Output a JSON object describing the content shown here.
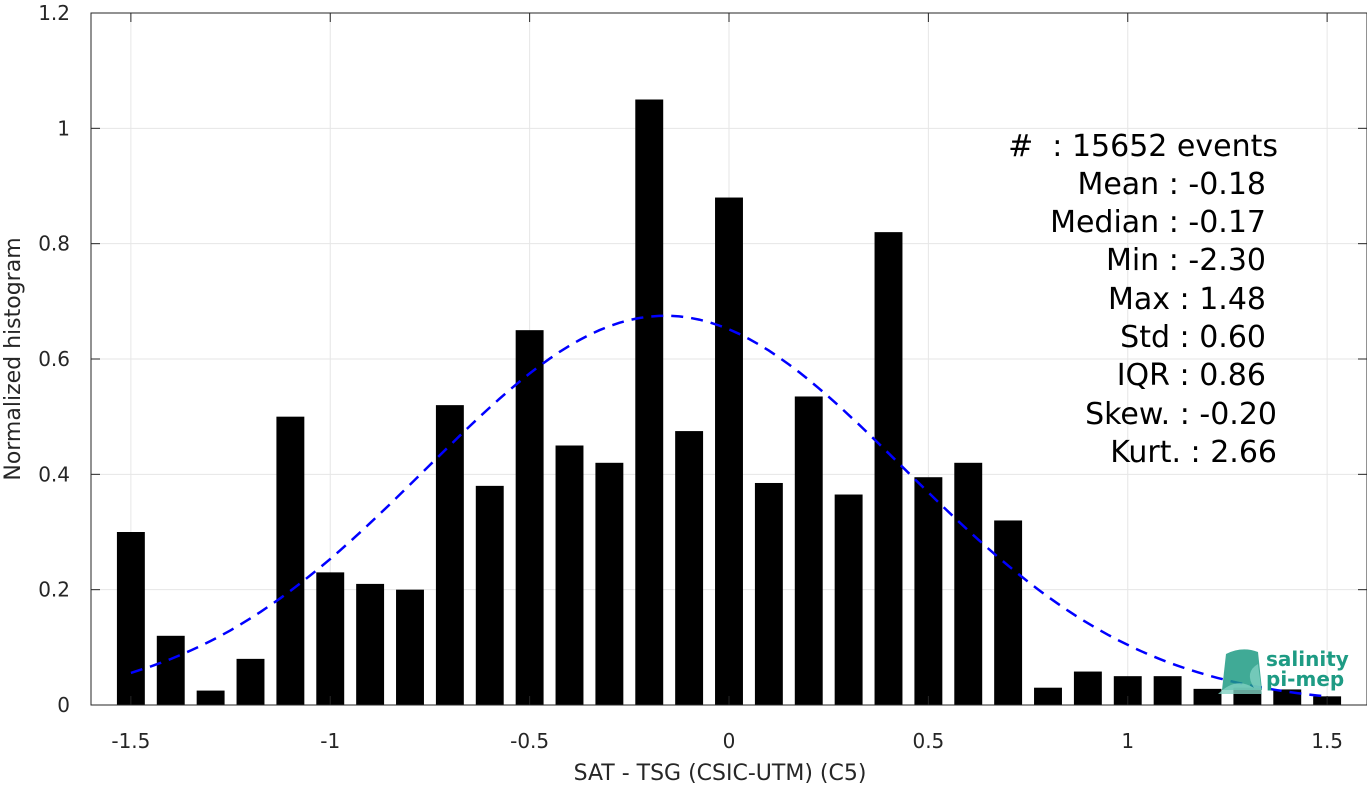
{
  "chart_data": {
    "type": "bar",
    "xlabel": "SAT - TSG (CSIC-UTM) (C5)",
    "ylabel": "Normalized histogram",
    "xlim": [
      -1.6,
      1.6
    ],
    "ylim": [
      0,
      1.2
    ],
    "xticks": [
      -1.5,
      -1,
      -0.5,
      0,
      0.5,
      1,
      1.5
    ],
    "xtick_labels": [
      "-1.5",
      "-1",
      "-0.5",
      "0",
      "0.5",
      "1",
      "1.5"
    ],
    "yticks": [
      0,
      0.2,
      0.4,
      0.6,
      0.8,
      1,
      1.2
    ],
    "ytick_labels": [
      "0",
      "0.2",
      "0.4",
      "0.6",
      "0.8",
      "1",
      "1.2"
    ],
    "grid": true,
    "bar_color": "#000000",
    "bar_width": 0.07,
    "bins": [
      -1.5,
      -1.4,
      -1.3,
      -1.2,
      -1.1,
      -1.0,
      -0.9,
      -0.8,
      -0.7,
      -0.6,
      -0.5,
      -0.4,
      -0.3,
      -0.2,
      -0.1,
      0.0,
      0.1,
      0.2,
      0.3,
      0.4,
      0.5,
      0.6,
      0.7,
      0.8,
      0.9,
      1.0,
      1.1,
      1.2,
      1.3,
      1.4,
      1.5
    ],
    "values": [
      0.3,
      0.12,
      0.025,
      0.08,
      0.5,
      0.23,
      0.21,
      0.2,
      0.52,
      0.38,
      0.65,
      0.45,
      0.42,
      1.05,
      0.475,
      0.88,
      0.385,
      0.535,
      0.365,
      0.82,
      0.395,
      0.42,
      0.32,
      0.03,
      0.058,
      0.05,
      0.05,
      0.028,
      0.03,
      0.027,
      0.015
    ],
    "fit": {
      "style": "dashed",
      "color": "#0000ff",
      "mean": -0.16,
      "sigma": 0.6,
      "peak": 0.675,
      "x_range": [
        -1.5,
        1.5
      ]
    }
  },
  "stats": [
    "#  : 15652 events",
    "Mean : -0.18",
    "Median : -0.17",
    "Min : -2.30",
    "Max : 1.48",
    "Std : 0.60",
    "IQR : 0.86",
    "Skew. : -0.20",
    "Kurt. : 2.66"
  ],
  "logo": {
    "line1": "salinity",
    "line2": "pi-mep",
    "color": "#1e9b84"
  }
}
